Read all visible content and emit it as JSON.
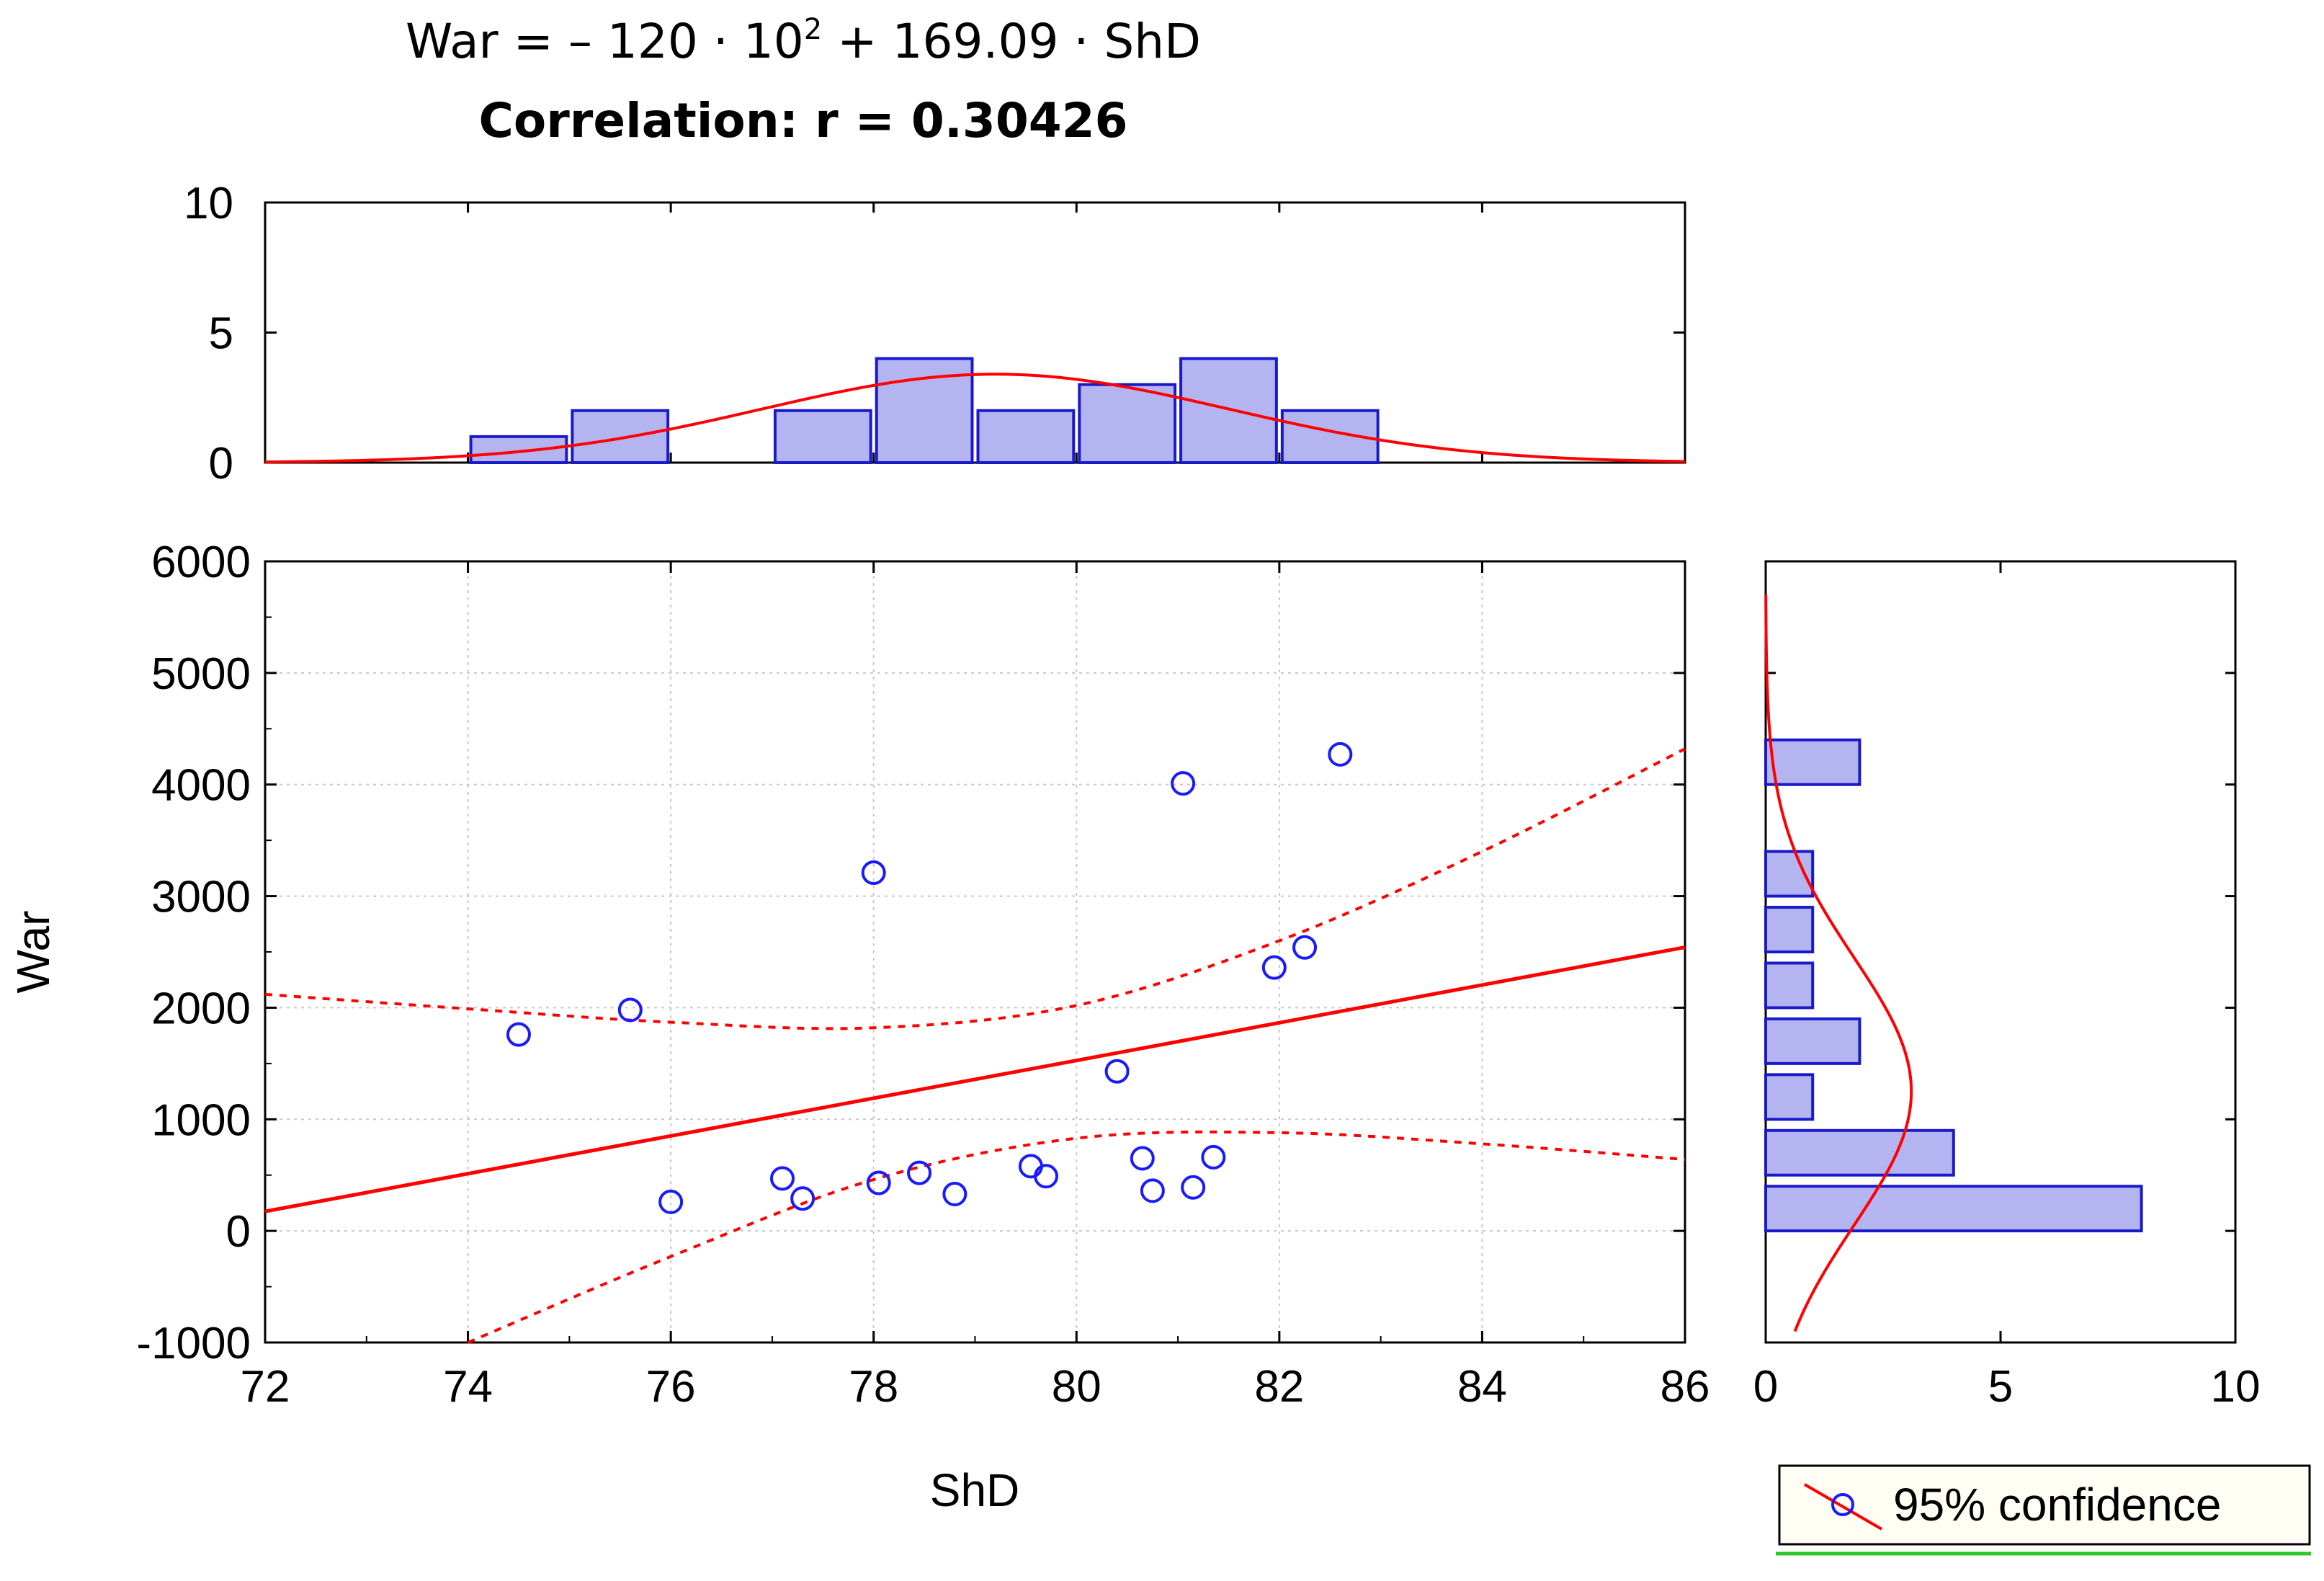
{
  "title_equation": {
    "prefix": "War = – 120 · 10",
    "exponent": "2",
    "suffix": " + 169.09 · ShD"
  },
  "title_correlation": "Correlation: r = 0.30426",
  "legend": {
    "label": "95% confidence"
  },
  "colors": {
    "points": "#1a1aff",
    "regression": "#ff0000",
    "bar_fill": "#b4b4f0",
    "bar_stroke": "#1a1acc",
    "grid": "#c8c8c8"
  },
  "chart_data": [
    {
      "id": "scatter",
      "type": "scatter",
      "xlabel": "ShD",
      "ylabel": "War",
      "xlim": [
        72,
        86
      ],
      "ylim": [
        -1000,
        6000
      ],
      "xticks": [
        72,
        74,
        76,
        78,
        80,
        82,
        84,
        86
      ],
      "yticks": [
        -1000,
        0,
        1000,
        2000,
        3000,
        4000,
        5000,
        6000
      ],
      "grid": true,
      "points": [
        {
          "x": 74.5,
          "y": 1760
        },
        {
          "x": 75.6,
          "y": 1980
        },
        {
          "x": 76.0,
          "y": 260
        },
        {
          "x": 77.1,
          "y": 470
        },
        {
          "x": 77.3,
          "y": 290
        },
        {
          "x": 78.0,
          "y": 3210
        },
        {
          "x": 78.05,
          "y": 430
        },
        {
          "x": 78.45,
          "y": 520
        },
        {
          "x": 78.8,
          "y": 330
        },
        {
          "x": 79.55,
          "y": 580
        },
        {
          "x": 79.7,
          "y": 490
        },
        {
          "x": 80.4,
          "y": 1430
        },
        {
          "x": 80.65,
          "y": 650
        },
        {
          "x": 80.75,
          "y": 360
        },
        {
          "x": 81.05,
          "y": 4010
        },
        {
          "x": 81.15,
          "y": 390
        },
        {
          "x": 81.35,
          "y": 660
        },
        {
          "x": 81.95,
          "y": 2360
        },
        {
          "x": 82.25,
          "y": 2540
        },
        {
          "x": 82.6,
          "y": 4270
        }
      ],
      "regression": {
        "intercept": -12000,
        "slope": 169.09
      },
      "confidence_upper": [
        {
          "x": 72,
          "y": 2120
        },
        {
          "x": 74,
          "y": 1990
        },
        {
          "x": 76,
          "y": 1870
        },
        {
          "x": 78,
          "y": 1820
        },
        {
          "x": 80,
          "y": 2020
        },
        {
          "x": 82,
          "y": 2600
        },
        {
          "x": 84,
          "y": 3400
        },
        {
          "x": 86,
          "y": 4320
        }
      ],
      "confidence_lower": [
        {
          "x": 74,
          "y": -1000
        },
        {
          "x": 76,
          "y": -230
        },
        {
          "x": 78,
          "y": 460
        },
        {
          "x": 80,
          "y": 830
        },
        {
          "x": 82,
          "y": 880
        },
        {
          "x": 84,
          "y": 780
        },
        {
          "x": 86,
          "y": 640
        }
      ]
    },
    {
      "id": "top_histogram",
      "type": "bar",
      "xlim": [
        72,
        86
      ],
      "ylim": [
        0,
        10
      ],
      "yticks": [
        0,
        5,
        10
      ],
      "bins": [
        {
          "x0": 74,
          "x1": 75,
          "count": 1
        },
        {
          "x0": 75,
          "x1": 76,
          "count": 2
        },
        {
          "x0": 77,
          "x1": 78,
          "count": 2
        },
        {
          "x0": 78,
          "x1": 79,
          "count": 4
        },
        {
          "x0": 79,
          "x1": 80,
          "count": 2
        },
        {
          "x0": 80,
          "x1": 81,
          "count": 3
        },
        {
          "x0": 81,
          "x1": 82,
          "count": 4
        },
        {
          "x0": 82,
          "x1": 83,
          "count": 2
        }
      ],
      "normal_curve": {
        "mean": 79.2,
        "sd": 2.3,
        "peak": 3.4
      }
    },
    {
      "id": "side_histogram",
      "type": "bar",
      "orientation": "horizontal",
      "xlim": [
        0,
        10
      ],
      "xticks": [
        0,
        5,
        10
      ],
      "bins": [
        {
          "y0": 0,
          "y1": 400,
          "count": 8
        },
        {
          "y0": 500,
          "y1": 900,
          "count": 4
        },
        {
          "y0": 1000,
          "y1": 1400,
          "count": 1
        },
        {
          "y0": 1500,
          "y1": 1900,
          "count": 2
        },
        {
          "y0": 2000,
          "y1": 2400,
          "count": 1
        },
        {
          "y0": 2500,
          "y1": 2900,
          "count": 1
        },
        {
          "y0": 3000,
          "y1": 3400,
          "count": 1
        },
        {
          "y0": 4000,
          "y1": 4400,
          "count": 2
        }
      ],
      "normal_curve": {
        "mean": 1250,
        "sd": 1200,
        "peak": 3.1
      }
    }
  ]
}
